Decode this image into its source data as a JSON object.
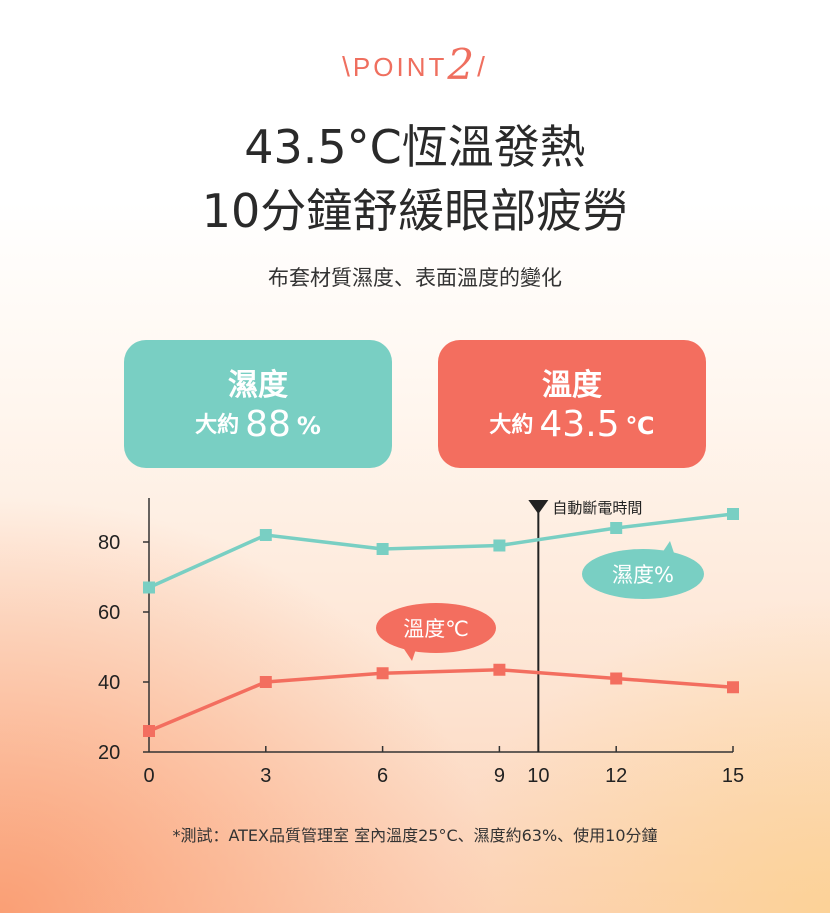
{
  "header": {
    "point_text": "POINT",
    "point_number": "2",
    "title_line1": "43.5°C恆溫發熱",
    "title_line2": "10分鐘舒緩眼部疲勞",
    "subtitle": "布套材質濕度、表面溫度的變化"
  },
  "cards": {
    "humidity": {
      "label": "濕度",
      "prefix": "大約",
      "value": "88",
      "unit": "%"
    },
    "temperature": {
      "label": "溫度",
      "prefix": "大約",
      "value": "43.5",
      "unit": "℃"
    }
  },
  "colors": {
    "humidity": "#79cfc3",
    "temperature": "#f36e5f",
    "axis": "#333333"
  },
  "chart_data": {
    "type": "line",
    "x": [
      0,
      3,
      6,
      9,
      12,
      15
    ],
    "x_ticks": [
      0,
      3,
      6,
      9,
      10,
      12,
      15
    ],
    "y_ticks": [
      20,
      40,
      60,
      80
    ],
    "xlim": [
      0,
      15
    ],
    "ylim": [
      20,
      90
    ],
    "series": [
      {
        "name": "濕度%",
        "values": [
          67,
          82,
          78,
          79,
          84,
          88
        ]
      },
      {
        "name": "溫度℃",
        "values": [
          26,
          40,
          42.5,
          43.5,
          41,
          38.5
        ]
      }
    ],
    "marker": {
      "x": 10,
      "label": "自動斷電時間"
    }
  },
  "footnote": "*測試：ATEX品質管理室 室內溫度25°C、濕度約63%、使用10分鐘"
}
